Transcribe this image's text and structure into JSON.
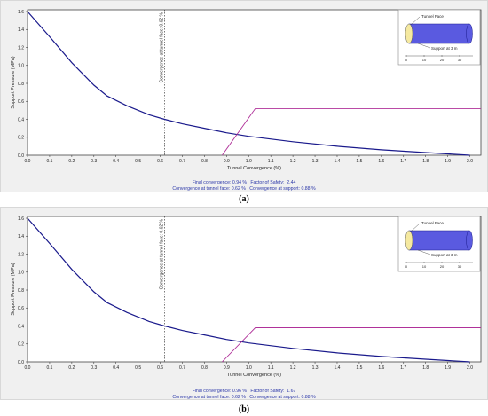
{
  "captions": [
    "(a)",
    "(b)"
  ],
  "chart_data": [
    {
      "type": "line",
      "xlabel": "Tunnel Convergence (%)",
      "ylabel": "Support Pressure (MPa)",
      "xlim": [
        0.0,
        2.05
      ],
      "ylim": [
        0.0,
        1.62
      ],
      "x_ticks": [
        "0.0",
        "0.1",
        "0.2",
        "0.3",
        "0.4",
        "0.5",
        "0.6",
        "0.7",
        "0.8",
        "0.9",
        "1.0",
        "1.1",
        "1.2",
        "1.3",
        "1.4",
        "1.5",
        "1.6",
        "1.7",
        "1.8",
        "1.9",
        "2.0"
      ],
      "y_ticks": [
        "0.0",
        "0.2",
        "0.4",
        "0.6",
        "0.8",
        "1.0",
        "1.2",
        "1.4",
        "1.6"
      ],
      "grid": false,
      "series": [
        {
          "name": "",
          "color": "#1a1a8c",
          "x": [
            0.0,
            0.1,
            0.2,
            0.3,
            0.36,
            0.45,
            0.55,
            0.62,
            0.7,
            0.8,
            0.9,
            1.0,
            1.2,
            1.4,
            1.6,
            1.8,
            2.0
          ],
          "y": [
            1.6,
            1.32,
            1.03,
            0.78,
            0.66,
            0.55,
            0.45,
            0.4,
            0.35,
            0.3,
            0.25,
            0.21,
            0.15,
            0.1,
            0.06,
            0.03,
            0.0
          ]
        },
        {
          "name": "",
          "color": "#b0329a",
          "x": [
            0.88,
            1.03,
            2.05
          ],
          "y": [
            0.0,
            0.52,
            0.52
          ]
        }
      ],
      "annotations": [
        {
          "x": 0.62,
          "text": "Convergence at tunnel face: 0.62 %"
        }
      ],
      "inset": {
        "face_label": "Tunnel Face",
        "support_label": "Support at 3 m",
        "scale_ticks": [
          "0",
          "10",
          "20",
          "30"
        ]
      },
      "stats": {
        "line1": "Final convergence: 0.94 %   Factor of Safety:  2.44",
        "line2": "Convergence at tunnel face: 0.62 %   Convergence at support: 0.88 %"
      }
    },
    {
      "type": "line",
      "xlabel": "Tunnel Convergence (%)",
      "ylabel": "Support Pressure (MPa)",
      "xlim": [
        0.0,
        2.05
      ],
      "ylim": [
        0.0,
        1.62
      ],
      "x_ticks": [
        "0.0",
        "0.1",
        "0.2",
        "0.3",
        "0.4",
        "0.5",
        "0.6",
        "0.7",
        "0.8",
        "0.9",
        "1.0",
        "1.1",
        "1.2",
        "1.3",
        "1.4",
        "1.5",
        "1.6",
        "1.7",
        "1.8",
        "1.9",
        "2.0"
      ],
      "y_ticks": [
        "0.0",
        "0.2",
        "0.4",
        "0.6",
        "0.8",
        "1.0",
        "1.2",
        "1.4",
        "1.6"
      ],
      "grid": false,
      "series": [
        {
          "name": "",
          "color": "#1a1a8c",
          "x": [
            0.0,
            0.1,
            0.2,
            0.3,
            0.36,
            0.45,
            0.55,
            0.62,
            0.7,
            0.8,
            0.9,
            1.0,
            1.2,
            1.4,
            1.6,
            1.8,
            2.0
          ],
          "y": [
            1.6,
            1.32,
            1.03,
            0.78,
            0.66,
            0.55,
            0.45,
            0.4,
            0.35,
            0.3,
            0.25,
            0.21,
            0.15,
            0.1,
            0.06,
            0.03,
            0.0
          ]
        },
        {
          "name": "",
          "color": "#b0329a",
          "x": [
            0.88,
            1.03,
            2.05
          ],
          "y": [
            0.0,
            0.38,
            0.38
          ]
        }
      ],
      "annotations": [
        {
          "x": 0.62,
          "text": "Convergence at tunnel face: 0.62 %"
        }
      ],
      "inset": {
        "face_label": "Tunnel Face",
        "support_label": "Support at 3 m",
        "scale_ticks": [
          "0",
          "10",
          "20",
          "30"
        ]
      },
      "stats": {
        "line1": "Final convergence: 0.96 %   Factor of Safety:  1.67",
        "line2": "Convergence at tunnel face: 0.62 %   Convergence at support: 0.88 %"
      }
    }
  ]
}
